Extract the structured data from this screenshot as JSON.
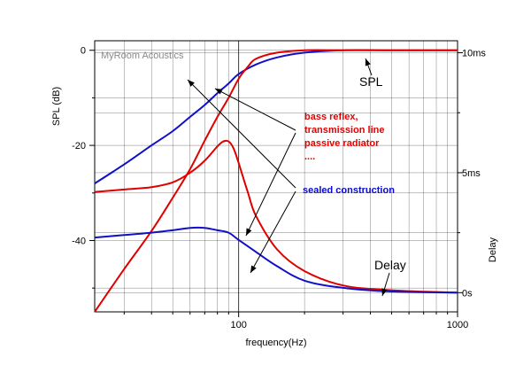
{
  "chart_data": {
    "type": "line",
    "watermark": "MyRoom Acoustics",
    "xlabel": "frequency(Hz)",
    "ylabel_left": "SPL (dB)",
    "ylabel_right": "Delay",
    "x_scale": "log",
    "xlim": [
      22,
      1000
    ],
    "x_ticks": [
      {
        "value": 100,
        "label": "100"
      },
      {
        "value": 1000,
        "label": "1000"
      }
    ],
    "spl_ylim": [
      -55,
      2
    ],
    "spl_ticks": [
      {
        "value": 0,
        "label": "0"
      },
      {
        "value": -20,
        "label": "-20"
      },
      {
        "value": -40,
        "label": "-40"
      }
    ],
    "delay_ylim": [
      -0.8,
      10.5
    ],
    "delay_ticks": [
      {
        "value": 0,
        "label": "0s"
      },
      {
        "value": 5,
        "label": "5ms"
      },
      {
        "value": 10,
        "label": "10ms"
      }
    ],
    "grid": true,
    "colors": {
      "sealed": "#1010c8",
      "reflex": "#e00000",
      "grid": "#000000"
    },
    "series": [
      {
        "key": "spl_sealed",
        "axis": "spl",
        "color": "#1010c8",
        "x": [
          22,
          30,
          40,
          50,
          60,
          70,
          80,
          90,
          100,
          120,
          150,
          200,
          300,
          500,
          1000
        ],
        "y": [
          -28,
          -24,
          -20,
          -17,
          -14,
          -11.5,
          -9,
          -7,
          -5,
          -3,
          -1.5,
          -0.5,
          0,
          0,
          0
        ]
      },
      {
        "key": "spl_reflex",
        "axis": "spl",
        "color": "#e00000",
        "x": [
          22,
          30,
          40,
          50,
          60,
          70,
          80,
          90,
          100,
          110,
          120,
          150,
          200,
          300,
          500,
          1000
        ],
        "y": [
          -55,
          -46,
          -38,
          -31,
          -25,
          -19,
          -14,
          -10,
          -6,
          -3.5,
          -1.8,
          -0.5,
          0,
          0,
          0,
          0
        ]
      },
      {
        "key": "delay_reflex",
        "axis": "delay",
        "color": "#e00000",
        "x": [
          22,
          30,
          40,
          50,
          60,
          70,
          80,
          85,
          90,
          95,
          100,
          110,
          120,
          150,
          200,
          300,
          500,
          1000
        ],
        "y": [
          4.2,
          4.3,
          4.4,
          4.6,
          5.0,
          5.5,
          6.1,
          6.3,
          6.3,
          6.0,
          5.4,
          4.2,
          3.2,
          1.8,
          0.9,
          0.3,
          0.1,
          0
        ]
      },
      {
        "key": "delay_sealed",
        "axis": "delay",
        "color": "#1010c8",
        "x": [
          22,
          30,
          40,
          50,
          60,
          70,
          80,
          90,
          100,
          120,
          150,
          200,
          300,
          500,
          1000
        ],
        "y": [
          2.3,
          2.4,
          2.5,
          2.6,
          2.7,
          2.7,
          2.6,
          2.5,
          2.2,
          1.7,
          1.1,
          0.5,
          0.2,
          0.05,
          0
        ]
      }
    ],
    "annotations": {
      "spl": "SPL",
      "reflex_lines": [
        "bass reflex,",
        "transmission line",
        "passive radiator",
        "...."
      ],
      "sealed": "sealed construction",
      "delay": "Delay"
    }
  }
}
